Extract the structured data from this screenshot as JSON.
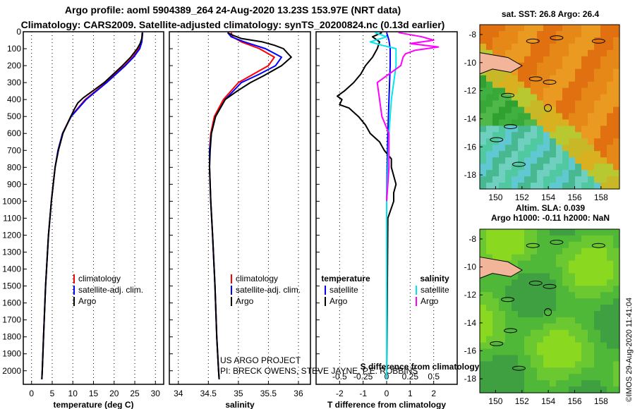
{
  "header": {
    "title_line1": "Argo profile: aoml 5904389_264 24-Aug-2020 13.23S 153.97E (NRT data)",
    "title_line2": "Climatology: CARS2009. Satellite-adjusted climatology: synTS_20200824.nc (0.13d earlier)"
  },
  "colors": {
    "argo": "#000000",
    "climatology": "#ff0000",
    "satellite": "#0000ff",
    "sat_salinity_diff": "#00e5ee",
    "argo_salinity_diff": "#ff00ff"
  },
  "chart_data": [
    {
      "id": "temperature-profile",
      "type": "line",
      "xlabel": "temperature (deg C)",
      "x_ticks": [
        0,
        5,
        10,
        15,
        20,
        25,
        30
      ],
      "xlim": [
        -2,
        32
      ],
      "ylim": [
        2080,
        0
      ],
      "y_ticks": [
        0,
        100,
        200,
        300,
        400,
        500,
        600,
        700,
        800,
        900,
        1000,
        1100,
        1200,
        1300,
        1400,
        1500,
        1600,
        1700,
        1800,
        1900,
        2000
      ],
      "legend": {
        "position": "lower-right",
        "entries": [
          "climatology",
          "satellite-adj. clim.",
          "Argo"
        ]
      },
      "series": [
        {
          "name": "climatology",
          "color": "#ff0000",
          "depth": [
            5,
            60,
            100,
            150,
            200,
            300,
            400,
            500,
            600,
            700,
            800,
            1000,
            1200,
            1500,
            1800,
            2000,
            2050
          ],
          "values": [
            26.9,
            26.6,
            26.0,
            24.5,
            22.5,
            18.0,
            13.0,
            9.5,
            7.5,
            6.4,
            5.7,
            4.8,
            4.1,
            3.4,
            2.9,
            2.6,
            2.5
          ]
        },
        {
          "name": "satellite-adj. clim.",
          "color": "#0000ff",
          "depth": [
            5,
            60,
            100,
            150,
            200,
            300,
            400,
            500,
            600,
            700,
            800,
            1000,
            1200,
            1500,
            1800,
            2000,
            2050
          ],
          "values": [
            26.9,
            26.7,
            26.2,
            24.7,
            22.7,
            18.2,
            13.2,
            9.6,
            7.5,
            6.4,
            5.7,
            4.8,
            4.1,
            3.4,
            2.9,
            2.6,
            2.5
          ]
        },
        {
          "name": "Argo",
          "color": "#000000",
          "depth": [
            5,
            40,
            70,
            100,
            150,
            200,
            300,
            350,
            390,
            420,
            450,
            500,
            600,
            700,
            800,
            1000,
            1200,
            1500,
            1800,
            2000,
            2050
          ],
          "values": [
            26.8,
            26.7,
            26.3,
            25.6,
            24.0,
            22.0,
            17.6,
            14.8,
            12.5,
            11.2,
            10.5,
            9.5,
            7.6,
            6.5,
            5.7,
            4.8,
            4.1,
            3.4,
            2.9,
            2.6,
            2.5
          ]
        }
      ]
    },
    {
      "id": "salinity-profile",
      "type": "line",
      "xlabel": "salinity",
      "x_ticks": [
        34,
        34.5,
        35,
        35.5,
        36
      ],
      "xlim": [
        33.85,
        36.2
      ],
      "ylim": [
        2080,
        0
      ],
      "legend": {
        "position": "lower-right",
        "entries": [
          "climatology",
          "satellite-adj. clim.",
          "Argo"
        ]
      },
      "series": [
        {
          "name": "climatology",
          "color": "#ff0000",
          "depth": [
            5,
            30,
            60,
            100,
            150,
            200,
            250,
            300,
            400,
            500,
            600,
            700,
            800,
            1000,
            1200,
            1500,
            1800,
            2000,
            2050
          ],
          "values": [
            34.88,
            34.9,
            35.05,
            35.35,
            35.6,
            35.5,
            35.25,
            35.0,
            34.75,
            34.6,
            34.54,
            34.52,
            34.52,
            34.54,
            34.57,
            34.61,
            34.64,
            34.67,
            34.68
          ]
        },
        {
          "name": "satellite-adj. clim.",
          "color": "#0000ff",
          "depth": [
            5,
            30,
            60,
            100,
            150,
            200,
            250,
            300,
            400,
            500,
            600,
            700,
            800,
            1000,
            1200,
            1500,
            1800,
            2000,
            2050
          ],
          "values": [
            34.82,
            34.88,
            35.1,
            35.45,
            35.72,
            35.62,
            35.35,
            35.05,
            34.78,
            34.62,
            34.55,
            34.52,
            34.52,
            34.54,
            34.57,
            34.61,
            34.64,
            34.67,
            34.68
          ]
        },
        {
          "name": "Argo",
          "color": "#000000",
          "depth": [
            5,
            20,
            40,
            60,
            80,
            100,
            150,
            200,
            260,
            300,
            350,
            400,
            450,
            500,
            600,
            700,
            800,
            1000,
            1200,
            1500,
            1800,
            2000,
            2050
          ],
          "values": [
            34.82,
            34.9,
            35.05,
            35.4,
            35.6,
            35.75,
            35.88,
            35.72,
            35.42,
            35.2,
            34.98,
            34.78,
            34.7,
            34.62,
            34.55,
            34.53,
            34.52,
            34.54,
            34.57,
            34.61,
            34.64,
            34.67,
            34.68
          ]
        }
      ],
      "annotations": [
        "US ARGO PROJECT",
        "PI: BRECK OWENS, STEVE JAYNE, P.E. ROBBINS"
      ]
    },
    {
      "id": "difference-profile",
      "type": "line",
      "xlabel": "T difference from climatology",
      "x_ticks": [
        -2,
        -1,
        0,
        1,
        2
      ],
      "xlim": [
        -3,
        3
      ],
      "top_label": "S difference from climatology",
      "top_ticks": [
        "-0.5",
        "-0.25",
        "0",
        "0.25",
        "0.5"
      ],
      "top_tick_positions": [
        -2,
        -1,
        0,
        1,
        2
      ],
      "ylim": [
        2080,
        0
      ],
      "legend": {
        "position": "lower-center",
        "entries": [
          "temperature",
          "satellite",
          "Argo",
          "salinity",
          "satellite",
          "Argo"
        ]
      },
      "series": [
        {
          "name": "temperature satellite",
          "color": "#0000ff",
          "depth": [
            5,
            50,
            100,
            200,
            400,
            600,
            800,
            1000,
            1500,
            2050
          ],
          "values": [
            0.0,
            0.1,
            0.15,
            0.15,
            0.1,
            0.05,
            0.02,
            0.0,
            0.0,
            0.0
          ]
        },
        {
          "name": "temperature Argo",
          "color": "#000000",
          "depth": [
            5,
            30,
            60,
            100,
            150,
            200,
            250,
            300,
            350,
            380,
            400,
            430,
            450,
            500,
            550,
            600,
            650,
            700,
            750,
            800,
            900,
            950,
            1000,
            1100,
            2050
          ],
          "values": [
            -0.2,
            -0.6,
            -0.3,
            -0.4,
            -0.6,
            -0.9,
            -1.1,
            -1.4,
            -1.8,
            -2.1,
            -1.9,
            -2.0,
            -1.6,
            -1.2,
            -0.9,
            -0.7,
            -0.3,
            -0.1,
            0.2,
            0.2,
            0.4,
            0.3,
            0.3,
            0.05,
            0.0
          ]
        },
        {
          "name": "salinity satellite",
          "color": "#00e5ee",
          "depth": [
            5,
            30,
            60,
            80,
            100,
            200,
            400,
            600,
            800,
            1000,
            1500,
            2050
          ],
          "values": [
            -0.5,
            0.0,
            -0.7,
            -0.2,
            0.4,
            0.4,
            0.2,
            0.1,
            0.05,
            0.0,
            0.0,
            0.0
          ]
        },
        {
          "name": "salinity Argo",
          "color": "#ff00ff",
          "depth": [
            5,
            30,
            50,
            70,
            90,
            110,
            130,
            150,
            200,
            300,
            400,
            500,
            600,
            800,
            1000
          ],
          "values": [
            0.5,
            1.5,
            2.0,
            1.0,
            2.2,
            1.2,
            0.8,
            0.7,
            0.6,
            -0.4,
            -0.3,
            -0.2,
            0.1,
            0.1,
            0.0
          ]
        }
      ]
    }
  ],
  "maps": [
    {
      "title": "sat. SST: 26.8 Argo: 26.4",
      "x_ticks": [
        150,
        152,
        154,
        156,
        158
      ],
      "y_ticks": [
        -8,
        -10,
        -12,
        -14,
        -16,
        -18
      ],
      "float_lon": 153.97,
      "float_lat": -13.23
    },
    {
      "title_line1": "Altim. SLA: 0.039",
      "title_line2": "Argo h1000: -0.11 h2000: NaN",
      "x_ticks": [
        150,
        152,
        154,
        156,
        158
      ],
      "y_ticks": [
        -8,
        -10,
        -12,
        -14,
        -16,
        -18
      ],
      "float_lon": 153.97,
      "float_lat": -13.23
    }
  ],
  "credit": "©IMOS 29-Aug-2020 11:41:04"
}
